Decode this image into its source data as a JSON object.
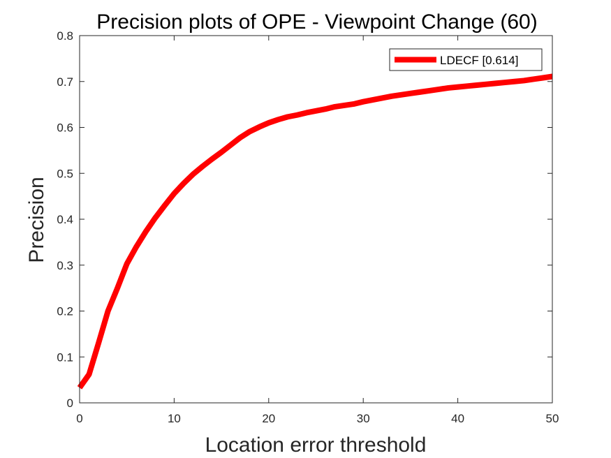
{
  "chart_data": {
    "type": "line",
    "title": "Precision plots of OPE - Viewpoint Change (60)",
    "xlabel": "Location error threshold",
    "ylabel": "Precision",
    "xlim": [
      0,
      50
    ],
    "ylim": [
      0,
      0.8
    ],
    "xticks": [
      0,
      10,
      20,
      30,
      40,
      50
    ],
    "xtick_labels": [
      "0",
      "10",
      "20",
      "30",
      "40",
      "50"
    ],
    "yticks": [
      0,
      0.1,
      0.2,
      0.3,
      0.4,
      0.5,
      0.6,
      0.7,
      0.8
    ],
    "ytick_labels": [
      "0",
      "0.1",
      "0.2",
      "0.3",
      "0.4",
      "0.5",
      "0.6",
      "0.7",
      "0.8"
    ],
    "grid": false,
    "legend_position": "top-right",
    "series": [
      {
        "name": "LDECF [0.614]",
        "color": "#ff0000",
        "x": [
          0,
          1,
          2,
          3,
          4,
          5,
          6,
          7,
          8,
          9,
          10,
          11,
          12,
          13,
          14,
          15,
          16,
          17,
          18,
          19,
          20,
          21,
          22,
          23,
          24,
          25,
          26,
          27,
          28,
          29,
          30,
          31,
          32,
          33,
          34,
          35,
          36,
          37,
          38,
          39,
          40,
          41,
          42,
          43,
          44,
          45,
          46,
          47,
          48,
          49,
          50
        ],
        "y": [
          0.033,
          0.062,
          0.13,
          0.2,
          0.25,
          0.303,
          0.34,
          0.373,
          0.403,
          0.43,
          0.456,
          0.478,
          0.498,
          0.515,
          0.531,
          0.546,
          0.562,
          0.578,
          0.591,
          0.601,
          0.61,
          0.617,
          0.623,
          0.627,
          0.632,
          0.636,
          0.64,
          0.645,
          0.648,
          0.651,
          0.656,
          0.66,
          0.664,
          0.668,
          0.671,
          0.674,
          0.677,
          0.68,
          0.683,
          0.686,
          0.688,
          0.69,
          0.692,
          0.694,
          0.696,
          0.698,
          0.7,
          0.702,
          0.705,
          0.708,
          0.711
        ]
      }
    ]
  }
}
